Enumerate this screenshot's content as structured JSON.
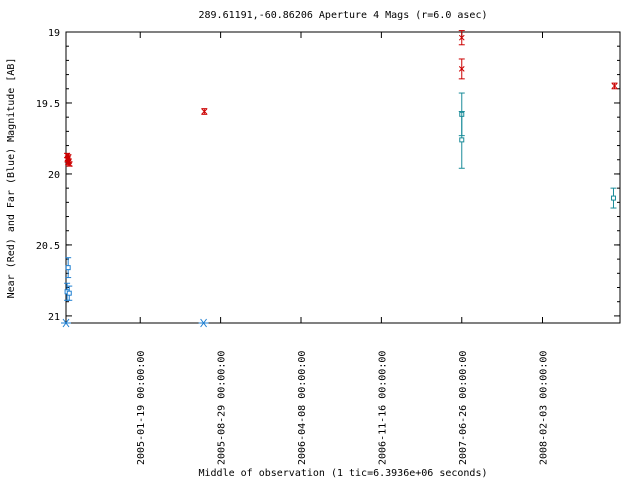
{
  "chart_data": {
    "type": "scatter",
    "title": "289.61191,-60.86206   Aperture 4 Mags (r=6.0 asec)",
    "xlabel": "Middle of observation (1 tic=6.3936e+06 seconds)",
    "ylabel": "Near (Red) and Far (Blue) Magnitude [AB]",
    "x_range_days": [
      0,
      1530
    ],
    "x_start_date": "2004-06-28",
    "xticks": [
      {
        "label": "2005-01-19 00:00:00",
        "day": 205
      },
      {
        "label": "2005-08-29 00:00:00",
        "day": 427
      },
      {
        "label": "2006-04-08 00:00:00",
        "day": 649
      },
      {
        "label": "2006-11-16 00:00:00",
        "day": 871
      },
      {
        "label": "2007-06-26 00:00:00",
        "day": 1093
      },
      {
        "label": "2008-02-03 00:00:00",
        "day": 1316
      }
    ],
    "ylim": [
      19,
      21.05
    ],
    "y_inverted": true,
    "yticks": [
      "19",
      "19.5",
      "20",
      "20.5",
      "21"
    ],
    "series": [
      {
        "color": "#cc0000",
        "marker": "x",
        "points": [
          {
            "day": 3,
            "y": 19.87,
            "err": 0.015
          },
          {
            "day": 4,
            "y": 19.9,
            "err": 0.015
          },
          {
            "day": 5,
            "y": 19.89,
            "err": 0.015
          },
          {
            "day": 6,
            "y": 19.92,
            "err": 0.015
          },
          {
            "day": 7,
            "y": 19.88,
            "err": 0.015
          },
          {
            "day": 8,
            "y": 19.91,
            "err": 0.015
          },
          {
            "day": 10,
            "y": 19.93,
            "err": 0.015
          },
          {
            "day": 382,
            "y": 19.56,
            "err": 0.02
          },
          {
            "day": 1093,
            "y": 19.04,
            "err": 0.05
          },
          {
            "day": 1093,
            "y": 19.26,
            "err": 0.07
          },
          {
            "day": 1515,
            "y": 19.38,
            "err": 0.02
          }
        ]
      },
      {
        "color": "#1a8c99",
        "marker": "square",
        "points": [
          {
            "day": 1093,
            "y": 19.58,
            "err": 0.15
          },
          {
            "day": 1093,
            "y": 19.76,
            "err": 0.2
          },
          {
            "day": 1512,
            "y": 20.17,
            "err": 0.07
          }
        ]
      },
      {
        "color": "#1f7fd1",
        "marker": "square",
        "points": [
          {
            "day": 3,
            "y": 20.83,
            "err": 0.06
          },
          {
            "day": 6,
            "y": 20.66,
            "err": 0.07
          },
          {
            "day": 9,
            "y": 20.84,
            "err": 0.05
          }
        ]
      },
      {
        "color": "#1f7fd1",
        "marker": "asterisk",
        "points": [
          {
            "day": 0,
            "y": 21.05
          },
          {
            "day": 380,
            "y": 21.05
          }
        ]
      }
    ]
  }
}
